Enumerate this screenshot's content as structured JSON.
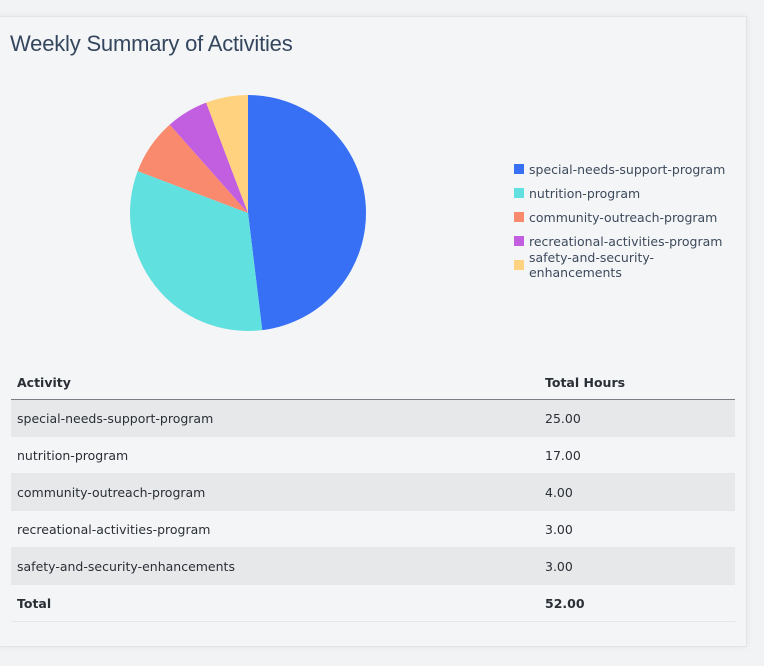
{
  "title": "Weekly Summary of Activities",
  "chart_data": {
    "type": "pie",
    "categories": [
      "special-needs-support-program",
      "nutrition-program",
      "community-outreach-program",
      "recreational-activities-program",
      "safety-and-security-enhancements"
    ],
    "values": [
      25,
      17,
      4,
      3,
      3
    ],
    "colors": [
      "#3770f5",
      "#61e0e0",
      "#fa8a6e",
      "#c25ee0",
      "#ffd27f"
    ],
    "legend": "right"
  },
  "table": {
    "headers": [
      "Activity",
      "Total Hours"
    ],
    "rows": [
      [
        "special-needs-support-program",
        "25.00"
      ],
      [
        "nutrition-program",
        "17.00"
      ],
      [
        "community-outreach-program",
        "4.00"
      ],
      [
        "recreational-activities-program",
        "3.00"
      ],
      [
        "safety-and-security-enhancements",
        "3.00"
      ]
    ],
    "total": [
      "Total",
      "52.00"
    ]
  }
}
